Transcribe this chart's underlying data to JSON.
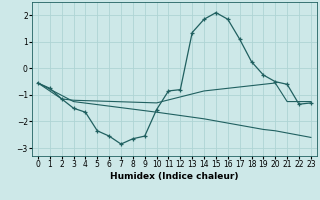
{
  "xlabel": "Humidex (Indice chaleur)",
  "ylabel": "",
  "xlim": [
    -0.5,
    23.5
  ],
  "ylim": [
    -3.3,
    2.5
  ],
  "background_color": "#cde8e8",
  "grid_color": "#afd4d4",
  "line_color": "#206060",
  "line1": {
    "x": [
      0,
      1,
      2,
      3,
      4,
      5,
      6,
      7,
      8,
      9,
      10,
      11,
      12,
      13,
      14,
      15,
      16,
      17,
      18,
      19,
      20,
      21,
      22,
      23
    ],
    "y": [
      -0.55,
      -0.75,
      -1.15,
      -1.5,
      -1.65,
      -2.35,
      -2.55,
      -2.85,
      -2.65,
      -2.55,
      -1.55,
      -0.85,
      -0.8,
      1.35,
      1.85,
      2.1,
      1.85,
      1.1,
      0.25,
      -0.25,
      -0.5,
      -0.6,
      -1.35,
      -1.3
    ]
  },
  "line2": {
    "x": [
      0,
      2,
      3,
      10,
      14,
      15,
      19,
      20,
      21,
      23
    ],
    "y": [
      -0.55,
      -1.15,
      -1.2,
      -1.3,
      -0.85,
      -0.8,
      -0.6,
      -0.55,
      -1.25,
      -1.25
    ]
  },
  "line3": {
    "x": [
      0,
      3,
      10,
      14,
      19,
      20,
      23
    ],
    "y": [
      -0.55,
      -1.25,
      -1.65,
      -1.9,
      -2.3,
      -2.35,
      -2.6
    ]
  },
  "yticks": [
    -3,
    -2,
    -1,
    0,
    1,
    2
  ],
  "xticks": [
    0,
    1,
    2,
    3,
    4,
    5,
    6,
    7,
    8,
    9,
    10,
    11,
    12,
    13,
    14,
    15,
    16,
    17,
    18,
    19,
    20,
    21,
    22,
    23
  ],
  "tick_fontsize": 5.5,
  "label_fontsize": 6.5
}
